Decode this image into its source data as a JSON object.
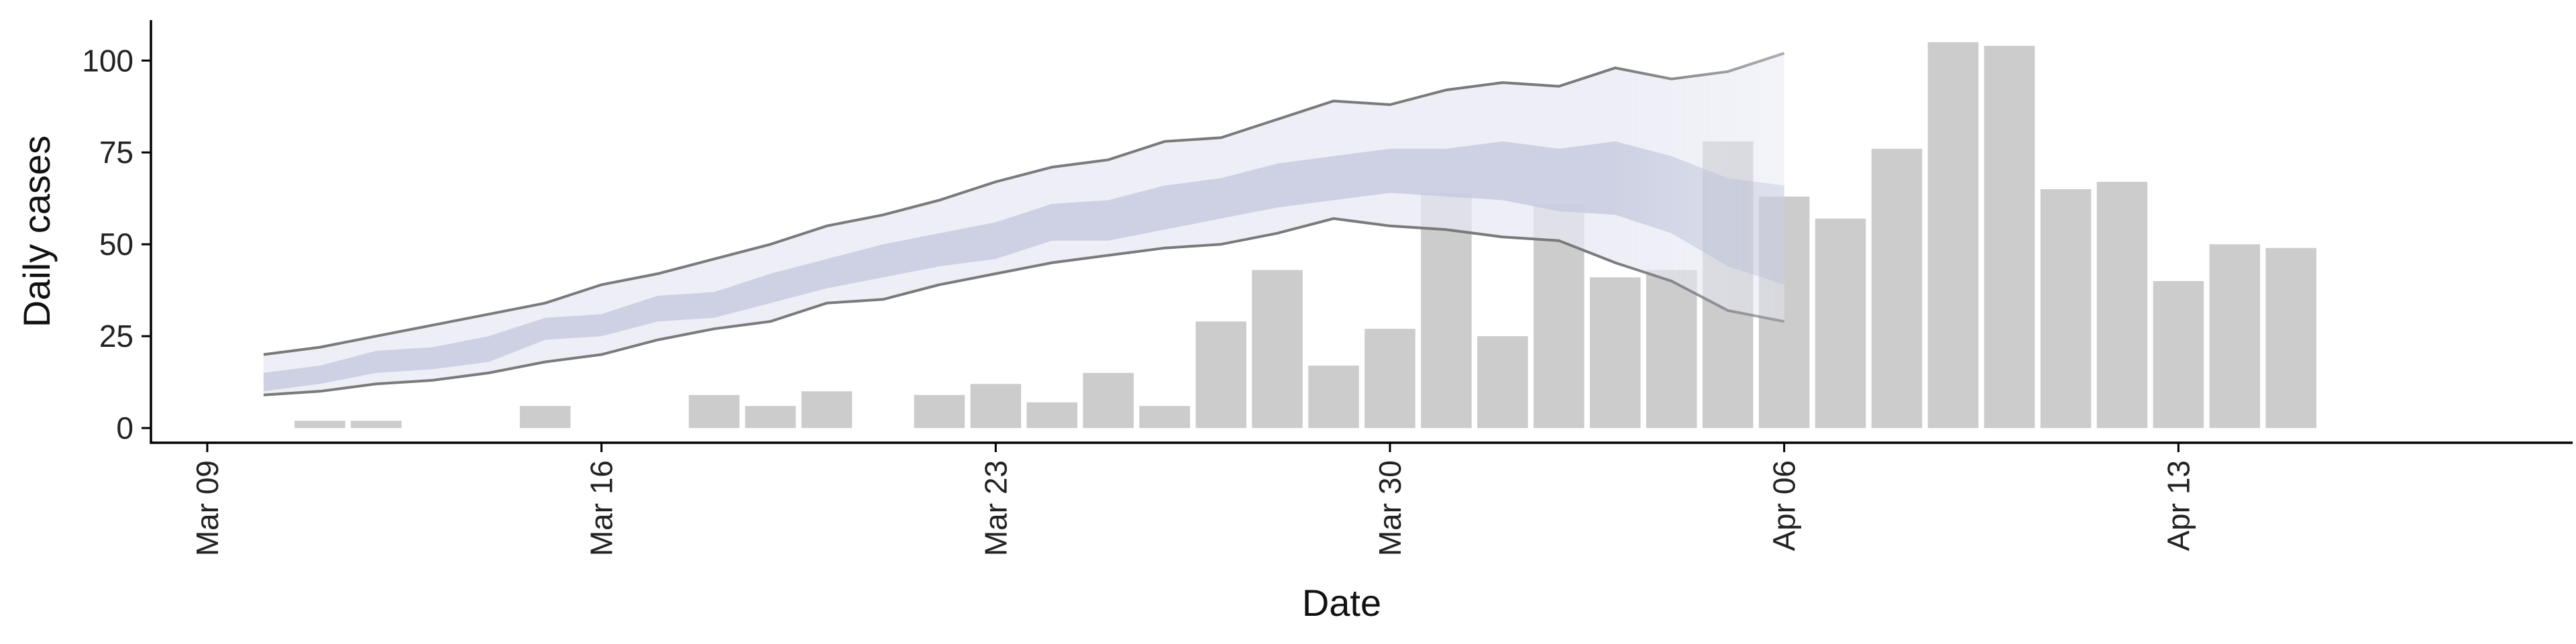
{
  "chart_data": {
    "type": "bar",
    "xlabel": "Date",
    "ylabel": "Daily cases",
    "xlim": [
      "2020-03-08",
      "2020-04-20"
    ],
    "ylim": [
      -4,
      111
    ],
    "x_ticks": [
      {
        "date": "2020-03-09",
        "label": "Mar 09"
      },
      {
        "date": "2020-03-16",
        "label": "Mar 16"
      },
      {
        "date": "2020-03-23",
        "label": "Mar 23"
      },
      {
        "date": "2020-03-30",
        "label": "Mar 30"
      },
      {
        "date": "2020-04-06",
        "label": "Apr 06"
      },
      {
        "date": "2020-04-13",
        "label": "Apr 13"
      }
    ],
    "y_ticks": [
      0,
      25,
      50,
      75,
      100
    ],
    "grid": false,
    "bars": {
      "color": "#cccccc",
      "dates": [
        "2020-03-11",
        "2020-03-12",
        "2020-03-15",
        "2020-03-18",
        "2020-03-19",
        "2020-03-20",
        "2020-03-22",
        "2020-03-23",
        "2020-03-24",
        "2020-03-25",
        "2020-03-26",
        "2020-03-27",
        "2020-03-28",
        "2020-03-29",
        "2020-03-30",
        "2020-03-31",
        "2020-04-01",
        "2020-04-02",
        "2020-04-03",
        "2020-04-04",
        "2020-04-05",
        "2020-04-06",
        "2020-04-07",
        "2020-04-08",
        "2020-04-09",
        "2020-04-10",
        "2020-04-11",
        "2020-04-12",
        "2020-04-13",
        "2020-04-14",
        "2020-04-15"
      ],
      "values": [
        2,
        2,
        6,
        9,
        6,
        10,
        9,
        12,
        7,
        15,
        6,
        29,
        43,
        17,
        27,
        64,
        25,
        61,
        41,
        43,
        78,
        63,
        57,
        76,
        105,
        104,
        65,
        67,
        40,
        50,
        49
      ]
    },
    "projection": {
      "dates": [
        "2020-03-10",
        "2020-03-11",
        "2020-03-12",
        "2020-03-13",
        "2020-03-14",
        "2020-03-15",
        "2020-03-16",
        "2020-03-17",
        "2020-03-18",
        "2020-03-19",
        "2020-03-20",
        "2020-03-21",
        "2020-03-22",
        "2020-03-23",
        "2020-03-24",
        "2020-03-25",
        "2020-03-26",
        "2020-03-27",
        "2020-03-28",
        "2020-03-29",
        "2020-03-30",
        "2020-03-31",
        "2020-04-01",
        "2020-04-02",
        "2020-04-03",
        "2020-04-04",
        "2020-04-05",
        "2020-04-06"
      ],
      "outer_upper": [
        20,
        22,
        25,
        28,
        31,
        34,
        39,
        42,
        46,
        50,
        55,
        58,
        62,
        67,
        71,
        73,
        78,
        79,
        84,
        89,
        88,
        92,
        94,
        93,
        98,
        95,
        97,
        102
      ],
      "inner_upper": [
        15,
        17,
        21,
        22,
        25,
        30,
        31,
        36,
        37,
        42,
        46,
        50,
        53,
        56,
        61,
        62,
        66,
        68,
        72,
        74,
        76,
        76,
        78,
        76,
        78,
        74,
        68,
        66
      ],
      "inner_lower": [
        10,
        12,
        15,
        16,
        18,
        24,
        25,
        29,
        30,
        34,
        38,
        41,
        44,
        46,
        51,
        51,
        54,
        57,
        60,
        62,
        64,
        63,
        62,
        59,
        58,
        53,
        44,
        39
      ],
      "outer_lower": [
        9,
        10,
        12,
        13,
        15,
        18,
        20,
        24,
        27,
        29,
        34,
        35,
        39,
        42,
        45,
        47,
        49,
        50,
        53,
        57,
        55,
        54,
        52,
        51,
        45,
        40,
        32,
        29
      ],
      "outer_band_color": "#e6e8f2",
      "inner_band_color": "#c5cade",
      "bound_line_color": "#7a7a7a"
    }
  }
}
